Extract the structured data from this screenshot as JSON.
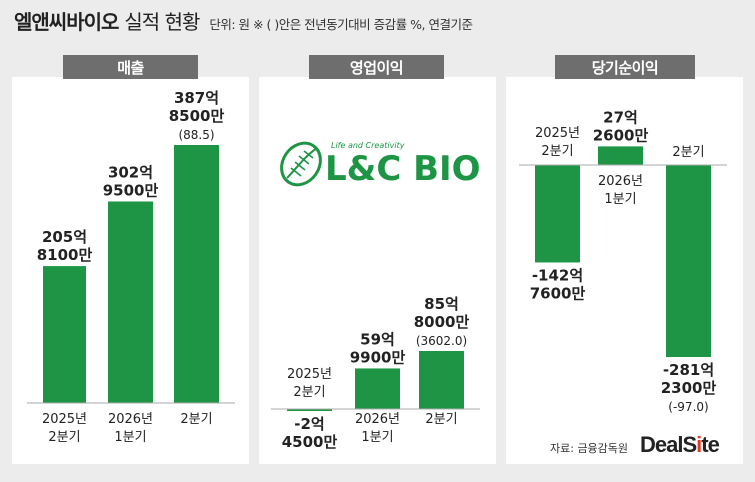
{
  "header": {
    "company": "엘앤씨바이오",
    "subtitle": "실적 현황",
    "note": "단위: 원 ※ ( )안은 전년동기대비 증감률 %, 연결기준"
  },
  "tabs": [
    "매출",
    "영업이익",
    "당기순이익"
  ],
  "logo": {
    "tagline": "Life and Creativity",
    "brand": "L&C BIO"
  },
  "source": "자료: 금융감독원",
  "publisher": {
    "deal": "DealS",
    "i": "i",
    "te": "te"
  },
  "colors": {
    "bar": "#1e9445",
    "panel": "#ffffff",
    "background": "#ececec",
    "tab": "#6e6e6e"
  },
  "chart_data": [
    {
      "type": "bar",
      "title": "매출",
      "categories": [
        [
          "2025년",
          "2분기"
        ],
        [
          "2026년",
          "1분기"
        ],
        [
          "2분기"
        ]
      ],
      "values": [
        205.81,
        302.95,
        387.85
      ],
      "value_labels": [
        [
          "205억",
          "8100만"
        ],
        [
          "302억",
          "9500만"
        ],
        [
          "387억",
          "8500만",
          "(88.5)"
        ]
      ],
      "unit": "억원"
    },
    {
      "type": "bar",
      "title": "영업이익",
      "categories": [
        [
          "2025년",
          "2분기"
        ],
        [
          "2026년",
          "1분기"
        ],
        [
          "2분기"
        ]
      ],
      "values": [
        -2.45,
        59.99,
        85.8
      ],
      "value_labels": [
        [
          "-2억",
          "4500만"
        ],
        [
          "59억",
          "9900만"
        ],
        [
          "85억",
          "8000만",
          "(3602.0)"
        ]
      ],
      "unit": "억원"
    },
    {
      "type": "bar",
      "title": "당기순이익",
      "categories": [
        [
          "2025년",
          "2분기"
        ],
        [
          "2026년",
          "1분기"
        ],
        [
          "2분기"
        ]
      ],
      "values": [
        -142.76,
        27.26,
        -281.23
      ],
      "value_labels": [
        [
          "-142억",
          "7600만"
        ],
        [
          "27억",
          "2600만"
        ],
        [
          "-281억",
          "2300만",
          "(-97.0)"
        ]
      ],
      "unit": "억원"
    }
  ]
}
